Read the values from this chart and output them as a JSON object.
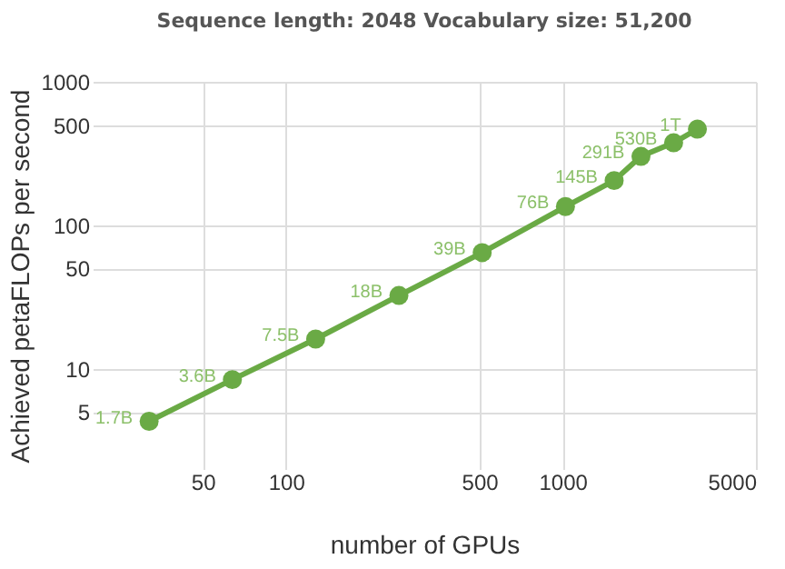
{
  "chart_data": {
    "type": "line",
    "title": "Sequence length: 2048        Vocabulary size: 51,200",
    "xlabel": "number of GPUs",
    "ylabel": "Achieved petaFLOPs per second",
    "x": [
      32,
      64,
      128,
      256,
      512,
      1024,
      1536,
      1920,
      2520,
      3072
    ],
    "series": [
      {
        "color": "#6aaa45",
        "values": [
          4.3,
          8.4,
          16.1,
          32.4,
          64.5,
          135,
          205,
          302,
          376,
          468
        ]
      }
    ],
    "annotations": [
      {
        "text": "1.7B",
        "x": 32,
        "y": 4.3
      },
      {
        "text": "3.6B",
        "x": 64,
        "y": 8.4
      },
      {
        "text": "7.5B",
        "x": 128,
        "y": 16.1
      },
      {
        "text": "18B",
        "x": 256,
        "y": 32.4
      },
      {
        "text": "39B",
        "x": 512,
        "y": 64.5
      },
      {
        "text": "76B",
        "x": 1024,
        "y": 135
      },
      {
        "text": "145B",
        "x": 1536,
        "y": 205
      },
      {
        "text": "291B",
        "x": 1920,
        "y": 302
      },
      {
        "text": "530B",
        "x": 2520,
        "y": 376
      },
      {
        "text": "1T",
        "x": 3072,
        "y": 468
      }
    ],
    "log": "xy",
    "xlim": [
      20,
      5000
    ],
    "xticks": [
      50,
      100,
      500,
      1000,
      5000
    ],
    "ylim": [
      2,
      1000
    ],
    "yticks": [
      5,
      10,
      50,
      100,
      500,
      1000
    ],
    "grid": true,
    "marker": "circle",
    "line_style": "solid"
  }
}
